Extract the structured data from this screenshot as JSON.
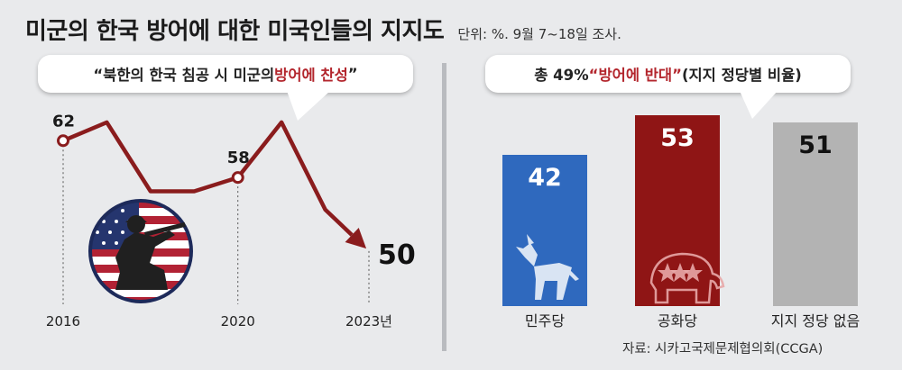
{
  "header": {
    "title": "미군의 한국 방어에 대한 미국인들의 지지도",
    "unit": "단위: %. 9월 7~18일 조사."
  },
  "left_panel": {
    "question_prefix": "“북한의 한국 침공 시 미군의 ",
    "question_highlight": "방어에 찬성",
    "question_suffix": "”"
  },
  "right_panel": {
    "heading_prefix": "총 49% ",
    "heading_highlight": "“방어에 반대”",
    "heading_suffix": " (지지 정당별 비율)"
  },
  "colors": {
    "line": "#8a1c1d",
    "democrat": "#2f69be",
    "republican": "#8f1515",
    "independent": "#b3b3b3",
    "highlight": "#b3262d"
  },
  "icons": [
    "us-flag-soldier-icon",
    "donkey-icon",
    "elephant-icon"
  ],
  "source": "자료: 시카고국제문제협의회(CCGA)",
  "chart_data": [
    {
      "type": "line",
      "x": [
        2016,
        2017,
        2018,
        2019,
        2020,
        2021,
        2022,
        2023
      ],
      "values": [
        62,
        64,
        56.5,
        56.5,
        58,
        64,
        54.5,
        50
      ],
      "point_labels": [
        {
          "x": 2016,
          "label": "62"
        },
        {
          "x": 2020,
          "label": "58"
        },
        {
          "x": 2023,
          "label": "50"
        }
      ],
      "tick_labels": [
        "2016",
        "2020",
        "2023년"
      ],
      "ylim": [
        45,
        68
      ]
    },
    {
      "type": "bar",
      "categories": [
        "민주당",
        "공화당",
        "지지 정당 없음"
      ],
      "values": [
        42,
        53,
        51
      ],
      "ylim": [
        0,
        60
      ]
    }
  ]
}
